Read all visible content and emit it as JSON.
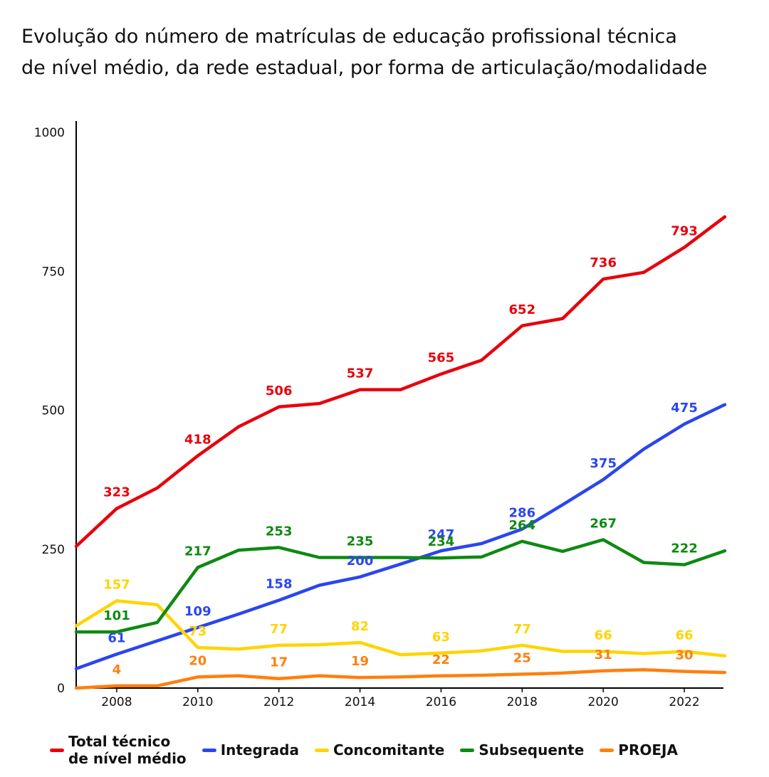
{
  "title_line1": "Evolução do número de matrículas de educação profissional técnica",
  "title_line2": "de nível médio, da rede estadual, por forma de articulação/modalidade",
  "chart_data": {
    "type": "line",
    "title": "Evolução do número de matrículas de educação profissional técnica de nível médio, da rede estadual, por forma de articulação/modalidade",
    "xlim": [
      2007,
      2023
    ],
    "ylim": [
      0,
      1000
    ],
    "y_ticks": [
      "0",
      "250",
      "500",
      "750",
      "1000"
    ],
    "x_ticks": [
      "2008",
      "2010",
      "2012",
      "2014",
      "2016",
      "2018",
      "2020",
      "2022"
    ],
    "grid": false,
    "legend_position": "bottom",
    "x": [
      2007,
      2008,
      2009,
      2010,
      2011,
      2012,
      2013,
      2014,
      2015,
      2016,
      2017,
      2018,
      2019,
      2020,
      2021,
      2022,
      2023
    ],
    "series": [
      {
        "name": "Total técnico\nde nível médio",
        "color": "#e8000b",
        "values": [
          255,
          323,
          360,
          418,
          470,
          506,
          512,
          537,
          537,
          565,
          590,
          652,
          665,
          736,
          748,
          793,
          848
        ],
        "labels": [
          {
            "x": 2008,
            "text": "323"
          },
          {
            "x": 2010,
            "text": "418"
          },
          {
            "x": 2012,
            "text": "506"
          },
          {
            "x": 2014,
            "text": "537"
          },
          {
            "x": 2016,
            "text": "565"
          },
          {
            "x": 2018,
            "text": "652"
          },
          {
            "x": 2020,
            "text": "736"
          },
          {
            "x": 2022,
            "text": "793"
          }
        ]
      },
      {
        "name": "Integrada",
        "color": "#2a46ee",
        "values": [
          35,
          61,
          85,
          109,
          133,
          158,
          185,
          200,
          223,
          247,
          260,
          286,
          330,
          375,
          430,
          475,
          510
        ],
        "labels": [
          {
            "x": 2008,
            "text": "61"
          },
          {
            "x": 2010,
            "text": "109"
          },
          {
            "x": 2012,
            "text": "158"
          },
          {
            "x": 2014,
            "text": "200"
          },
          {
            "x": 2016,
            "text": "247"
          },
          {
            "x": 2018,
            "text": "286"
          },
          {
            "x": 2020,
            "text": "375"
          },
          {
            "x": 2022,
            "text": "475"
          }
        ]
      },
      {
        "name": "Concomitante",
        "color": "#ffd400",
        "values": [
          112,
          157,
          150,
          73,
          70,
          77,
          78,
          82,
          60,
          63,
          67,
          77,
          66,
          66,
          62,
          66,
          58
        ],
        "labels": [
          {
            "x": 2008,
            "text": "157"
          },
          {
            "x": 2010,
            "text": "73"
          },
          {
            "x": 2012,
            "text": "77"
          },
          {
            "x": 2014,
            "text": "82"
          },
          {
            "x": 2016,
            "text": "63"
          },
          {
            "x": 2018,
            "text": "77"
          },
          {
            "x": 2020,
            "text": "66"
          },
          {
            "x": 2022,
            "text": "66"
          }
        ]
      },
      {
        "name": "Subsequente",
        "color": "#0d8a12",
        "values": [
          101,
          101,
          118,
          217,
          248,
          253,
          235,
          235,
          235,
          234,
          236,
          264,
          246,
          267,
          226,
          222,
          247
        ],
        "labels": [
          {
            "x": 2008,
            "text": "101"
          },
          {
            "x": 2010,
            "text": "217"
          },
          {
            "x": 2012,
            "text": "253"
          },
          {
            "x": 2014,
            "text": "235"
          },
          {
            "x": 2016,
            "text": "234"
          },
          {
            "x": 2018,
            "text": "264"
          },
          {
            "x": 2020,
            "text": "267"
          },
          {
            "x": 2022,
            "text": "222"
          }
        ]
      },
      {
        "name": "PROEJA",
        "color": "#ff7f0e",
        "values": [
          0,
          4,
          4,
          20,
          22,
          17,
          22,
          19,
          20,
          22,
          23,
          25,
          27,
          31,
          33,
          30,
          28
        ],
        "labels": [
          {
            "x": 2008,
            "text": "4"
          },
          {
            "x": 2010,
            "text": "20"
          },
          {
            "x": 2012,
            "text": "17"
          },
          {
            "x": 2014,
            "text": "19"
          },
          {
            "x": 2016,
            "text": "22"
          },
          {
            "x": 2018,
            "text": "25"
          },
          {
            "x": 2020,
            "text": "31"
          },
          {
            "x": 2022,
            "text": "30"
          }
        ]
      }
    ]
  }
}
